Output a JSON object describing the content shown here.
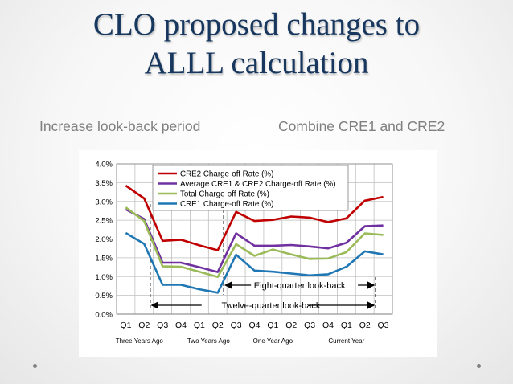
{
  "slide": {
    "title_line1": "CLO proposed changes to",
    "title_line2": "ALLL calculation",
    "subtitle_left": "Increase look-back period",
    "subtitle_right": "Combine CRE1 and CRE2"
  },
  "colors": {
    "title": "#17375e",
    "cre2": "#c00000",
    "avg": "#7030a0",
    "total": "#9bbb59",
    "cre1": "#1f77b4"
  },
  "chart_data": {
    "type": "line",
    "title": "",
    "xlabel": "",
    "ylabel": "",
    "ylim": [
      0,
      4.0
    ],
    "yticks": [
      "0.0%",
      "0.5%",
      "1.0%",
      "1.5%",
      "2.0%",
      "2.5%",
      "3.0%",
      "3.5%",
      "4.0%"
    ],
    "ytick_values": [
      0,
      0.5,
      1.0,
      1.5,
      2.0,
      2.5,
      3.0,
      3.5,
      4.0
    ],
    "categories": [
      "Q1",
      "Q2",
      "Q3",
      "Q4",
      "Q1",
      "Q2",
      "Q3",
      "Q4",
      "Q1",
      "Q2",
      "Q3",
      "Q4",
      "Q1",
      "Q2",
      "Q3"
    ],
    "year_groups": [
      "Three Years  Ago",
      "Two Years  Ago",
      "One Year  Ago",
      "Current Year"
    ],
    "grid": true,
    "legend_position": "top-left",
    "series": [
      {
        "name": "CRE2 Charge-off Rate (%)",
        "color": "#c00000",
        "values": [
          3.42,
          3.08,
          1.95,
          1.98,
          1.83,
          1.7,
          2.72,
          2.48,
          2.51,
          2.6,
          2.57,
          2.45,
          2.55,
          3.02,
          3.12
        ]
      },
      {
        "name": "Average CRE1 & CRE2 Charge-off Rate (%)",
        "color": "#7030a0",
        "values": [
          2.79,
          2.53,
          1.37,
          1.37,
          1.25,
          1.12,
          2.15,
          1.82,
          1.82,
          1.84,
          1.8,
          1.75,
          1.9,
          2.34,
          2.36
        ]
      },
      {
        "name": "Total Charge-off Rate (%)",
        "color": "#9bbb59",
        "values": [
          2.84,
          2.48,
          1.27,
          1.26,
          1.13,
          0.99,
          1.86,
          1.55,
          1.72,
          1.59,
          1.47,
          1.48,
          1.65,
          2.15,
          2.11
        ]
      },
      {
        "name": "CRE1 Charge-off Rate (%)",
        "color": "#1f77b4",
        "values": [
          2.16,
          1.87,
          0.78,
          0.78,
          0.66,
          0.57,
          1.58,
          1.16,
          1.13,
          1.08,
          1.03,
          1.06,
          1.26,
          1.67,
          1.59
        ]
      }
    ],
    "annotations": {
      "eight_quarter": "Eight-quarter look-back",
      "twelve_quarter": "Twelve-quarter look-back"
    }
  }
}
